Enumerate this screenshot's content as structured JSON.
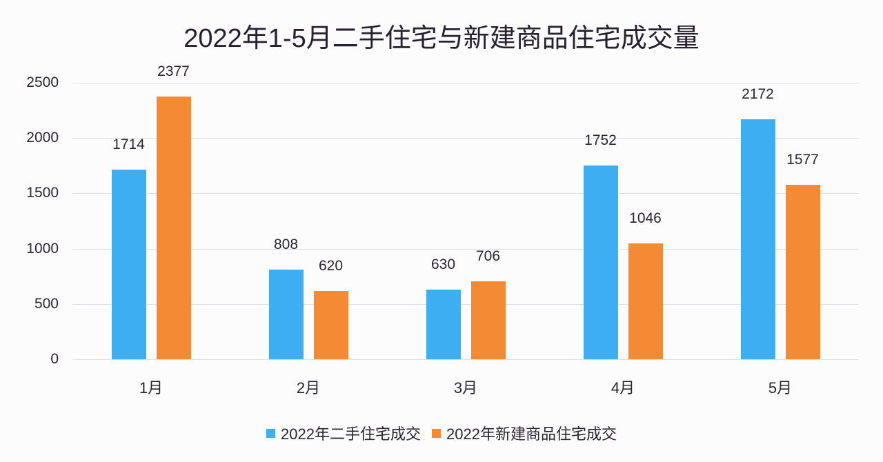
{
  "chart_data": {
    "type": "bar",
    "title": "2022年1-5月二手住宅与新建商品住宅成交量",
    "xlabel": "",
    "ylabel": "",
    "ylim": [
      0,
      2500
    ],
    "yticks": [
      "0",
      "500",
      "1000",
      "1500",
      "2000",
      "2500"
    ],
    "categories": [
      "1月",
      "2月",
      "3月",
      "4月",
      "5月"
    ],
    "series": [
      {
        "name": "2022年二手住宅成交",
        "color": "#3daef2",
        "values": [
          1714,
          808,
          630,
          1752,
          2172
        ]
      },
      {
        "name": "2022年新建商品住宅成交",
        "color": "#f58a35",
        "values": [
          2377,
          620,
          706,
          1046,
          1577
        ]
      }
    ],
    "grid": true,
    "legend_position": "bottom"
  }
}
